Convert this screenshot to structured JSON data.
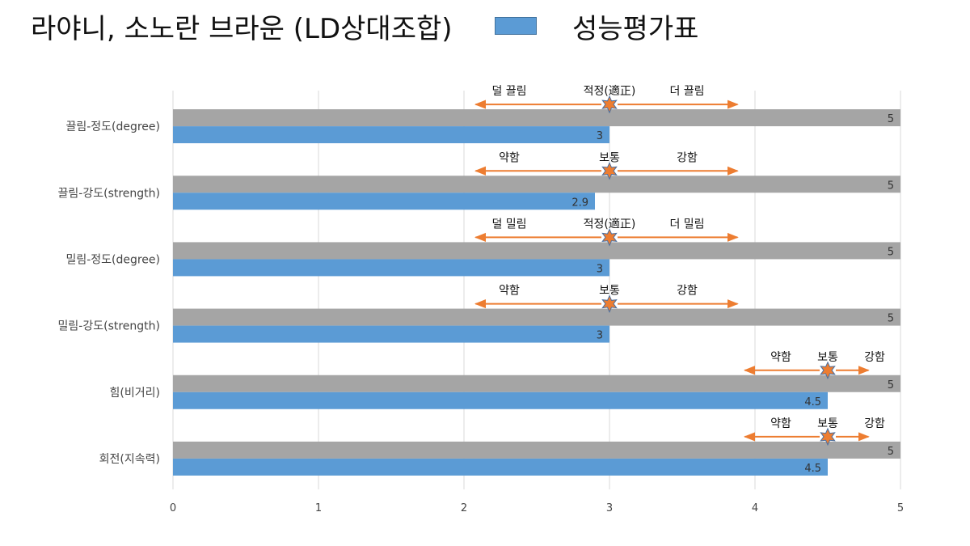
{
  "title": "라야니, 소노란 브라운 (LD상대조합)",
  "legend": {
    "label": "성능평가표",
    "color": "#5b9bd5"
  },
  "chart_data": {
    "type": "bar",
    "orientation": "horizontal",
    "categories": [
      "끌림-정도(degree)",
      "끌림-강도(strength)",
      "밀림-정도(degree)",
      "밀림-강도(strength)",
      "힘(비거리)",
      "회전(지속력)"
    ],
    "series": [
      {
        "values": [
          5,
          5,
          5,
          5,
          5,
          5
        ],
        "color": "#a5a5a5"
      },
      {
        "name": "성능평가표",
        "values": [
          3,
          2.9,
          3,
          3,
          4.5,
          4.5
        ],
        "color": "#5b9bd5"
      }
    ],
    "value_labels": {
      "gray": [
        "5",
        "5",
        "5",
        "5",
        "5",
        "5"
      ],
      "blue": [
        "3",
        "2.9",
        "3",
        "3",
        "4.5",
        "4.5"
      ]
    },
    "xlim": [
      0,
      5
    ],
    "xticks": [
      "0",
      "1",
      "2",
      "3",
      "4",
      "5"
    ],
    "grid": true,
    "annotations": [
      {
        "left": "덜 끌림",
        "center": "적정(適正)",
        "right": "더 끌림",
        "marker": 3,
        "arrow_from": 2.08,
        "arrow_to": 3.88
      },
      {
        "left": "약함",
        "center": "보통",
        "right": "강함",
        "marker": 3,
        "arrow_from": 2.08,
        "arrow_to": 3.88
      },
      {
        "left": "덜 밀림",
        "center": "적정(適正)",
        "right": "더 밀림",
        "marker": 3,
        "arrow_from": 2.08,
        "arrow_to": 3.88
      },
      {
        "left": "약함",
        "center": "보통",
        "right": "강함",
        "marker": 3,
        "arrow_from": 2.08,
        "arrow_to": 3.88
      },
      {
        "left": "약함",
        "center": "보통",
        "right": "강함",
        "marker": 4.5,
        "arrow_from": 3.93,
        "arrow_to": 4.78
      },
      {
        "left": "약함",
        "center": "보통",
        "right": "강함",
        "marker": 4.5,
        "arrow_from": 3.93,
        "arrow_to": 4.78
      }
    ],
    "colors": {
      "arrow": "#ed7d31",
      "star": "#ed7d31",
      "grid": "#d9d9d9"
    }
  }
}
